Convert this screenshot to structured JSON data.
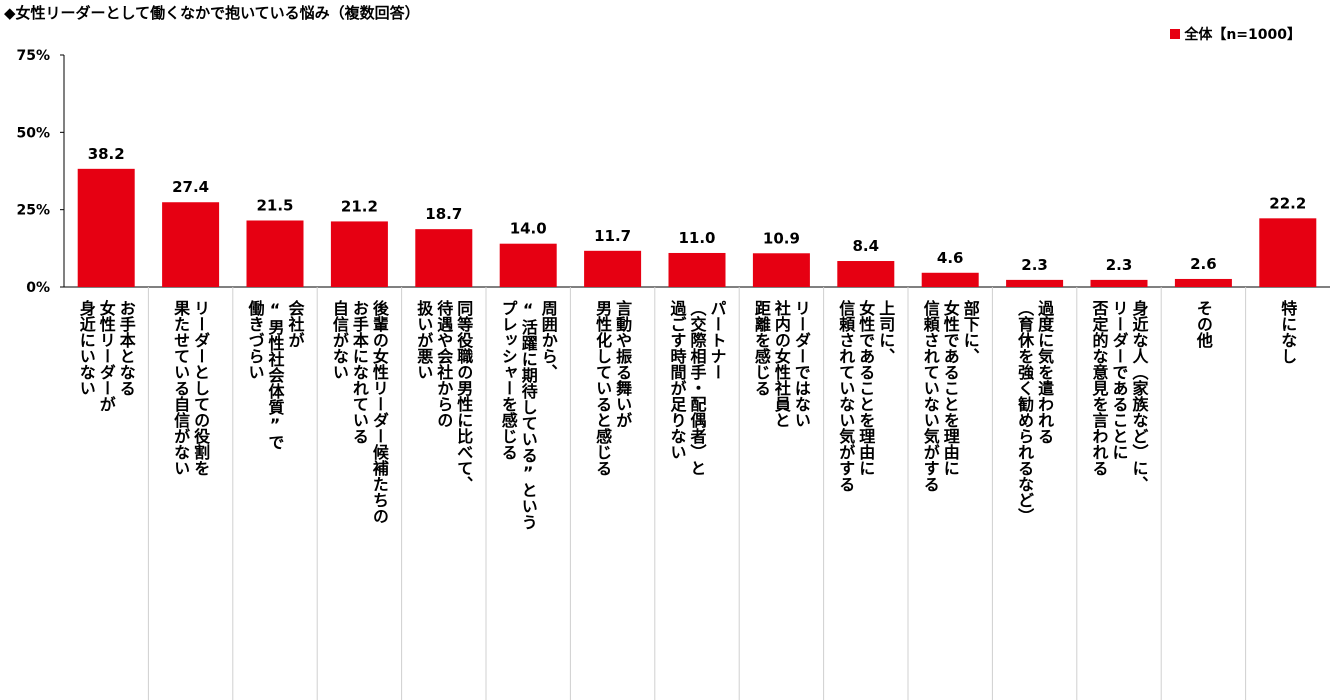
{
  "title": "◆女性リーダーとして働くなかで抱いている悩み（複数回答）",
  "legend": {
    "label": "全体【n=1000】",
    "color": "#E60012"
  },
  "chart_data": {
    "type": "bar",
    "title": "◆女性リーダーとして働くなかで抱いている悩み（複数回答）",
    "xlabel": "",
    "ylabel": "",
    "ylim": [
      0,
      75
    ],
    "yticks": [
      "0%",
      "25%",
      "50%",
      "75%"
    ],
    "grid": false,
    "legend_position": "top-right",
    "categories": [
      "お手本となる女性リーダーが身近にいない",
      "リーダーとしての役割を果たせている自信がない",
      "会社が男性社会体質”で働きづらい",
      "後輩の女性リーダー候補たちのお手本になれている自信がない",
      "同等役職の男性に比べて、待遇や会社からの扱いが悪い",
      "周囲から、活躍に期待している”というプレッシャーを感じる",
      "言動や振る舞いが男性化していると感じる",
      "パートナー（交際相手・配偶者）と過ごす時間が足りない",
      "リーダーではない社内の女性社員と距離を感じる",
      "上司に、女性であることを理由に信頼されていない気がする",
      "部下に、女性であることを理由に信頼されていない気がする",
      "過度に気を遣われる（育休を強く勧められるなど）",
      "身近な人（家族など）に、リーダーであることに否定的な意見を言われる",
      "その他",
      "特になし"
    ],
    "category_lines": [
      [
        "お手本となる",
        "女性リーダーが",
        "身近にいない"
      ],
      [
        "リーダーとしての役割を",
        "果たせている自信がない"
      ],
      [
        "会社が",
        "“男性社会体質”で",
        "働きづらい"
      ],
      [
        "後輩の女性リーダー候補たちの",
        "お手本になれている",
        "自信がない"
      ],
      [
        "同等役職の男性に比べて、",
        "待遇や会社からの",
        "扱いが悪い"
      ],
      [
        "周囲から、",
        "“活躍に期待している”という",
        "プレッシャーを感じる"
      ],
      [
        "言動や振る舞いが",
        "男性化していると感じる"
      ],
      [
        "パートナー",
        "（交際相手・配偶者）と",
        "過ごす時間が足りない"
      ],
      [
        "リーダーではない",
        "社内の女性社員と",
        "距離を感じる"
      ],
      [
        "上司に、",
        "女性であることを理由に",
        "信頼されていない気がする"
      ],
      [
        "部下に、",
        "女性であることを理由に",
        "信頼されていない気がする"
      ],
      [
        "過度に気を遣われる",
        "（育休を強く勧められるなど）"
      ],
      [
        "身近な人（家族など）に、",
        "リーダーであることに",
        "否定的な意見を言われる"
      ],
      [
        "その他"
      ],
      [
        "特になし"
      ]
    ],
    "series": [
      {
        "name": "全体【n=1000】",
        "color": "#E60012",
        "values": [
          38.2,
          27.4,
          21.5,
          21.2,
          18.7,
          14.0,
          11.7,
          11.0,
          10.9,
          8.4,
          4.6,
          2.3,
          2.3,
          2.6,
          22.2
        ],
        "labels": [
          "38.2",
          "27.4",
          "21.5",
          "21.2",
          "18.7",
          "14.0",
          "11.7",
          "11.0",
          "10.9",
          "8.4",
          "4.6",
          "2.3",
          "2.3",
          "2.6",
          "22.2"
        ]
      }
    ]
  }
}
